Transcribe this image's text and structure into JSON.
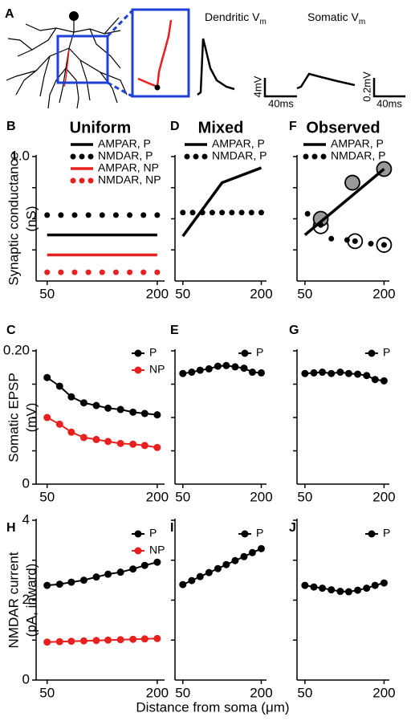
{
  "panel_a": {
    "letter": "A",
    "dendritic_title": "Dendritic V",
    "dendritic_sub": "m",
    "somatic_title": "Somatic V",
    "somatic_sub": "m",
    "dendritic_scale_y": "4mV",
    "dendritic_scale_x": "40ms",
    "somatic_scale_y": "0.2mV",
    "somatic_scale_x": "40ms"
  },
  "figure_xlabel": "Distance from soma (μm)",
  "chart_data": [
    {
      "type": "line",
      "panel": "B",
      "title": "Uniform",
      "ylabel": [
        "Synaptic conductance",
        "(nS)"
      ],
      "xlim": [
        35,
        210
      ],
      "ylim": [
        0,
        1
      ],
      "xticks": [
        50,
        200
      ],
      "yticks": [
        {
          "value": 1,
          "label": "1.0"
        }
      ],
      "ytick_marks": [
        0.25,
        0.5,
        0.75
      ],
      "series": [
        {
          "name": "AMPAR, P",
          "color": "#000000",
          "style": "line",
          "x": [
            50,
            200
          ],
          "values": [
            0.37,
            0.37
          ]
        },
        {
          "name": "NMDAR, P",
          "color": "#000000",
          "style": "dots",
          "x": [
            50,
            68.75,
            87.5,
            106.25,
            125,
            143.75,
            162.5,
            181.25,
            200
          ],
          "values": [
            0.53,
            0.53,
            0.53,
            0.53,
            0.53,
            0.53,
            0.53,
            0.53,
            0.53
          ]
        },
        {
          "name": "AMPAR, NP",
          "color": "#e8201f",
          "style": "line",
          "x": [
            50,
            200
          ],
          "values": [
            0.21,
            0.21
          ]
        },
        {
          "name": "NMDAR, NP",
          "color": "#e8201f",
          "style": "dots",
          "x": [
            50,
            68.75,
            87.5,
            106.25,
            125,
            143.75,
            162.5,
            181.25,
            200
          ],
          "values": [
            0.07,
            0.07,
            0.07,
            0.07,
            0.07,
            0.07,
            0.07,
            0.07,
            0.07
          ]
        }
      ]
    },
    {
      "type": "line",
      "panel": "D",
      "title": "Mixed",
      "xlim": [
        35,
        210
      ],
      "ylim": [
        0,
        1
      ],
      "xticks": [
        50,
        200
      ],
      "ytick_marks": [
        0.25,
        0.5,
        0.75,
        1
      ],
      "series": [
        {
          "name": "AMPAR, P",
          "color": "#000000",
          "style": "line",
          "x": [
            50,
            125,
            200
          ],
          "values": [
            0.36,
            0.79,
            0.91
          ]
        },
        {
          "name": "NMDAR, P",
          "color": "#000000",
          "style": "dots",
          "x": [
            50,
            68.75,
            87.5,
            106.25,
            125,
            143.75,
            162.5,
            181.25,
            200
          ],
          "values": [
            0.55,
            0.55,
            0.55,
            0.55,
            0.55,
            0.55,
            0.55,
            0.55,
            0.55
          ]
        }
      ]
    },
    {
      "type": "line",
      "panel": "F",
      "title": "Observed",
      "xlim": [
        35,
        210
      ],
      "ylim": [
        0,
        1
      ],
      "xticks": [
        50,
        200
      ],
      "ytick_marks": [
        0.25,
        0.5,
        0.75,
        1
      ],
      "series": [
        {
          "color": "#000000",
          "fill": "#ffffff",
          "style": "circles",
          "x": [
            80,
            145,
            200
          ],
          "values": [
            0.44,
            0.32,
            0.29
          ]
        },
        {
          "color": "#000000",
          "fill": "#999999",
          "style": "circles",
          "x": [
            80,
            140,
            200
          ],
          "values": [
            0.5,
            0.79,
            0.9
          ]
        },
        {
          "name": "AMPAR, P",
          "color": "#000000",
          "style": "line",
          "x": [
            50,
            200
          ],
          "values": [
            0.37,
            0.9
          ]
        },
        {
          "name": "NMDAR, P",
          "color": "#000000",
          "style": "dots",
          "x": [
            55,
            80,
            100,
            130,
            145,
            175,
            200
          ],
          "values": [
            0.54,
            0.45,
            0.34,
            0.33,
            0.32,
            0.3,
            0.29
          ]
        }
      ]
    },
    {
      "type": "line",
      "panel": "C",
      "ylabel": [
        "Somatic EPSP",
        "(mV)"
      ],
      "xlim": [
        35,
        210
      ],
      "ylim": [
        0,
        0.2
      ],
      "xticks": [
        50,
        200
      ],
      "yticks": [
        0,
        {
          "value": 0.2,
          "label": "0.20"
        }
      ],
      "ytick_marks": [
        0.05,
        0.1,
        0.15
      ],
      "series": [
        {
          "name": "P",
          "color": "#000000",
          "style": "markers",
          "x": [
            50,
            67,
            83,
            100,
            117,
            133,
            150,
            167,
            183,
            200
          ],
          "values": [
            0.16,
            0.147,
            0.131,
            0.122,
            0.118,
            0.114,
            0.112,
            0.108,
            0.106,
            0.104
          ]
        },
        {
          "name": "NP",
          "color": "#e8201f",
          "style": "markers",
          "x": [
            50,
            67,
            83,
            100,
            117,
            133,
            150,
            167,
            183,
            200
          ],
          "values": [
            0.1,
            0.09,
            0.078,
            0.07,
            0.067,
            0.064,
            0.061,
            0.06,
            0.058,
            0.055
          ]
        }
      ]
    },
    {
      "type": "line",
      "panel": "E",
      "xlim": [
        35,
        210
      ],
      "ylim": [
        0,
        0.2
      ],
      "xticks": [
        50,
        200
      ],
      "ytick_marks": [
        0.05,
        0.1,
        0.15,
        0.2
      ],
      "series": [
        {
          "name": "P",
          "color": "#000000",
          "style": "markers",
          "x": [
            50,
            67,
            83,
            100,
            117,
            133,
            150,
            167,
            183,
            200
          ],
          "values": [
            0.166,
            0.168,
            0.171,
            0.173,
            0.177,
            0.178,
            0.176,
            0.174,
            0.168,
            0.167
          ]
        }
      ]
    },
    {
      "type": "line",
      "panel": "G",
      "xlim": [
        35,
        210
      ],
      "ylim": [
        0,
        0.2
      ],
      "xticks": [
        50,
        200
      ],
      "ytick_marks": [
        0.05,
        0.1,
        0.15,
        0.2
      ],
      "series": [
        {
          "name": "P",
          "color": "#000000",
          "style": "markers",
          "x": [
            50,
            67,
            83,
            100,
            117,
            133,
            150,
            167,
            183,
            200
          ],
          "values": [
            0.166,
            0.167,
            0.168,
            0.166,
            0.168,
            0.166,
            0.165,
            0.163,
            0.157,
            0.155
          ]
        }
      ]
    },
    {
      "type": "line",
      "panel": "H",
      "ylabel": [
        "NMDAR current",
        "(pA, inward)"
      ],
      "xlim": [
        35,
        210
      ],
      "ylim": [
        0,
        4
      ],
      "xticks": [
        50,
        200
      ],
      "yticks": [
        0,
        2,
        4
      ],
      "ytick_marks": [
        1,
        3
      ],
      "series": [
        {
          "name": "P",
          "color": "#000000",
          "style": "markers",
          "x": [
            50,
            67,
            83,
            100,
            117,
            133,
            150,
            167,
            183,
            200
          ],
          "values": [
            2.37,
            2.4,
            2.45,
            2.5,
            2.58,
            2.65,
            2.7,
            2.78,
            2.87,
            2.95
          ]
        },
        {
          "name": "NP",
          "color": "#e8201f",
          "style": "markers",
          "x": [
            50,
            67,
            83,
            100,
            117,
            133,
            150,
            167,
            183,
            200
          ],
          "values": [
            0.95,
            0.96,
            0.97,
            0.98,
            0.99,
            1.0,
            1.01,
            1.02,
            1.03,
            1.04
          ]
        }
      ]
    },
    {
      "type": "line",
      "panel": "I",
      "xlim": [
        35,
        210
      ],
      "ylim": [
        0,
        4
      ],
      "xticks": [
        50,
        200
      ],
      "ytick_marks": [
        1,
        2,
        3,
        4
      ],
      "series": [
        {
          "name": "P",
          "color": "#000000",
          "style": "markers",
          "x": [
            50,
            67,
            83,
            100,
            117,
            133,
            150,
            167,
            183,
            200
          ],
          "values": [
            2.39,
            2.49,
            2.59,
            2.69,
            2.79,
            2.89,
            2.99,
            3.09,
            3.19,
            3.29
          ]
        }
      ]
    },
    {
      "type": "line",
      "panel": "J",
      "xlim": [
        35,
        210
      ],
      "ylim": [
        0,
        4
      ],
      "xticks": [
        50,
        200
      ],
      "ytick_marks": [
        1,
        2,
        3,
        4
      ],
      "series": [
        {
          "name": "P",
          "color": "#000000",
          "style": "markers",
          "x": [
            50,
            67,
            83,
            100,
            117,
            133,
            150,
            167,
            183,
            200
          ],
          "values": [
            2.37,
            2.33,
            2.3,
            2.26,
            2.22,
            2.21,
            2.25,
            2.3,
            2.37,
            2.43
          ]
        }
      ]
    }
  ]
}
